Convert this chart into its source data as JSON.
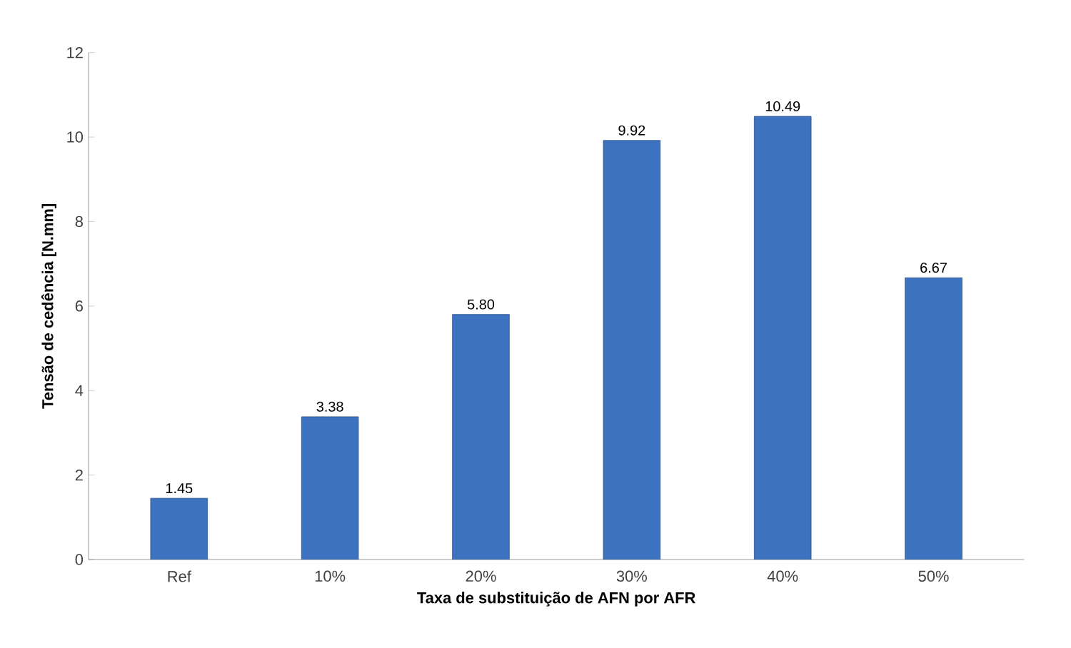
{
  "chart_data": {
    "type": "bar",
    "xlabel": "Taxa de substituição de AFN por AFR",
    "ylabel": "Tensão de cedência [N.mm]",
    "categories": [
      "Ref",
      "10%",
      "20%",
      "30%",
      "40%",
      "50%"
    ],
    "values": [
      1.45,
      3.38,
      5.8,
      9.92,
      10.49,
      6.67
    ],
    "value_labels": [
      "1.45",
      "3.38",
      "5.80",
      "9.92",
      "10.49",
      "6.67"
    ],
    "color": "#3d72c0",
    "ylim": [
      0,
      12
    ],
    "yticks": [
      0,
      2,
      4,
      6,
      8,
      10,
      12
    ],
    "grid": false
  }
}
